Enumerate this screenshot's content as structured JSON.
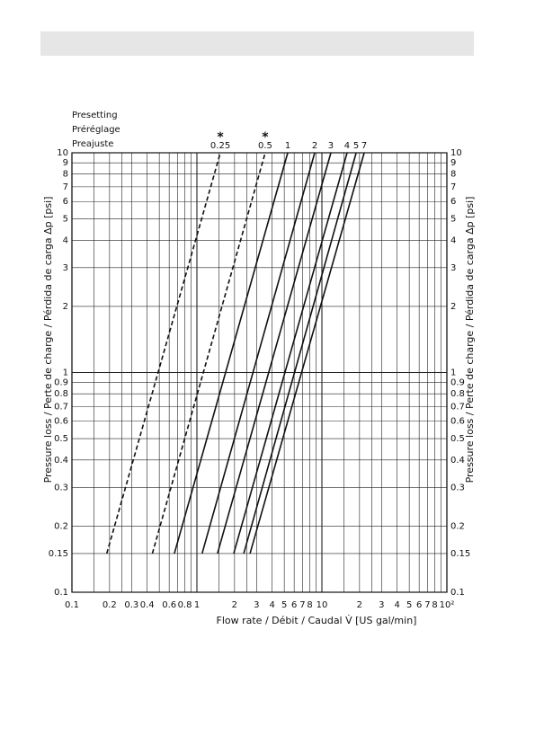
{
  "chart_data": {
    "type": "line",
    "log_x": true,
    "log_y": true,
    "grid": true,
    "legend_title": [
      "Presetting",
      "Préréglage",
      "Preajuste"
    ],
    "xlabel": "Flow rate / Débit / Caudal V̇ [US gal/min]",
    "ylabel": "Pressure loss / Perte de charge / Pérdida de carga Δp [psi]",
    "xlim": [
      0.1,
      100
    ],
    "ylim": [
      0.1,
      10
    ],
    "xticks": [
      0.1,
      0.2,
      0.3,
      0.4,
      0.6,
      0.8,
      1,
      2,
      3,
      4,
      5,
      6,
      7,
      8,
      10,
      {
        "value": 20,
        "label": "2"
      },
      {
        "value": 30,
        "label": "3"
      },
      {
        "value": 40,
        "label": "4"
      },
      {
        "value": 50,
        "label": "5"
      },
      {
        "value": 60,
        "label": "6"
      },
      {
        "value": 70,
        "label": "7"
      },
      {
        "value": 80,
        "label": "8"
      },
      {
        "value": 100,
        "label": "10²"
      }
    ],
    "yticks": [
      0.1,
      0.15,
      0.2,
      0.3,
      0.4,
      0.5,
      0.6,
      0.7,
      0.8,
      0.9,
      1,
      2,
      3,
      4,
      5,
      6,
      7,
      8,
      9,
      10
    ],
    "xgrid": [
      0.1,
      0.15,
      0.2,
      0.25,
      0.3,
      0.4,
      0.5,
      0.6,
      0.7,
      0.8,
      0.9,
      1,
      1.5,
      2,
      2.5,
      3,
      4,
      5,
      6,
      7,
      8,
      9,
      10,
      15,
      20,
      25,
      30,
      40,
      50,
      60,
      70,
      80,
      90,
      100
    ],
    "series": [
      {
        "name": "0.25",
        "annotation": "*",
        "dash": true,
        "color": "#111",
        "x": [
          0.19,
          1.54
        ],
        "y": [
          0.15,
          10
        ]
      },
      {
        "name": "0.5",
        "annotation": "*",
        "dash": true,
        "color": "#111",
        "x": [
          0.44,
          3.52
        ],
        "y": [
          0.15,
          10
        ]
      },
      {
        "name": "1",
        "dash": false,
        "color": "#111",
        "x": [
          0.66,
          5.33
        ],
        "y": [
          0.15,
          10
        ]
      },
      {
        "name": "2",
        "dash": false,
        "color": "#111",
        "x": [
          1.1,
          8.76
        ],
        "y": [
          0.15,
          10
        ]
      },
      {
        "name": "3",
        "dash": false,
        "color": "#111",
        "x": [
          1.46,
          11.8
        ],
        "y": [
          0.15,
          10
        ]
      },
      {
        "name": "4",
        "dash": false,
        "color": "#111",
        "x": [
          1.97,
          15.9
        ],
        "y": [
          0.15,
          10
        ]
      },
      {
        "name": "5",
        "dash": false,
        "color": "#111",
        "x": [
          2.37,
          18.8
        ],
        "y": [
          0.15,
          10
        ]
      },
      {
        "name": "7",
        "dash": false,
        "color": "#111",
        "x": [
          2.66,
          21.8
        ],
        "y": [
          0.15,
          10
        ]
      }
    ]
  }
}
